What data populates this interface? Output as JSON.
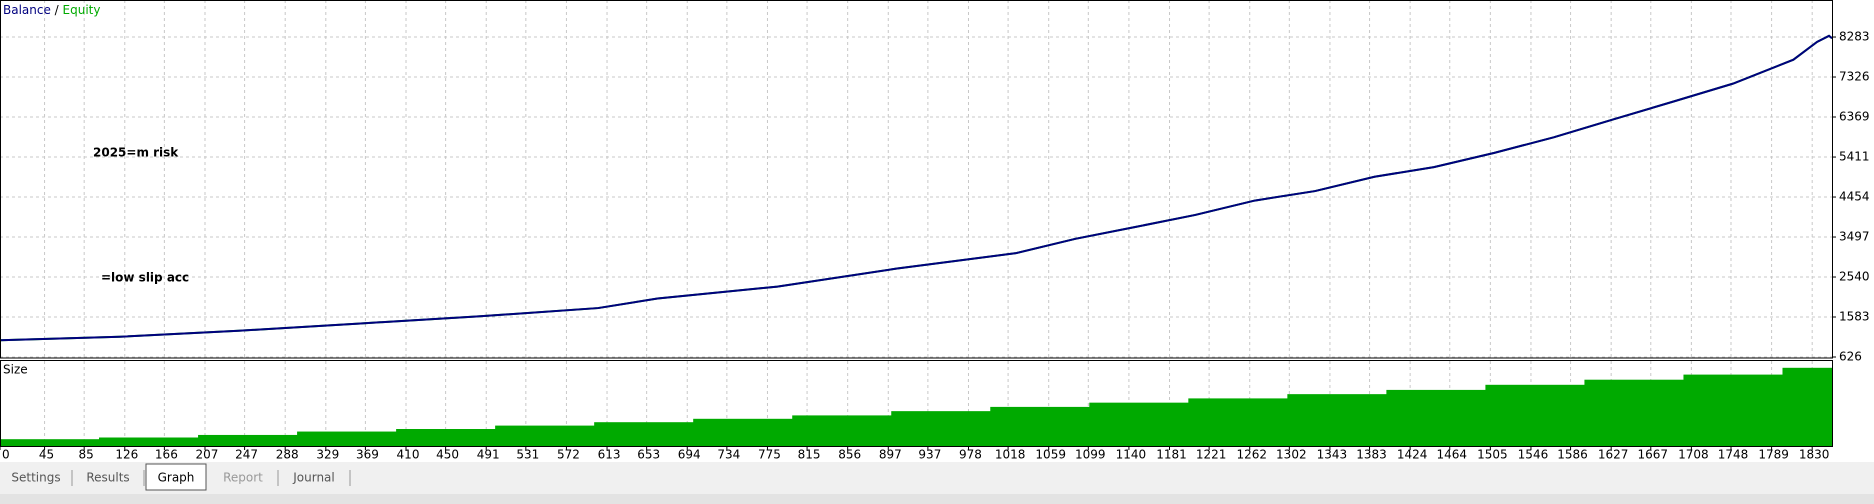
{
  "chart_data": [
    {
      "type": "line",
      "x": [
        0,
        121,
        241,
        362,
        483,
        604,
        664,
        785,
        905,
        1026,
        1086,
        1147,
        1207,
        1267,
        1328,
        1388,
        1448,
        1509,
        1569,
        1629,
        1690,
        1750,
        1811,
        1835,
        1847,
        1850
      ],
      "series": [
        {
          "name": "Balance",
          "color": "#00007f",
          "values": [
            1026,
            1111,
            1254,
            1426,
            1597,
            1797,
            2026,
            2311,
            2740,
            3111,
            3454,
            3740,
            4026,
            4369,
            4597,
            4940,
            5169,
            5511,
            5883,
            6311,
            6740,
            7168,
            7740,
            8168,
            8311,
            8254
          ]
        },
        {
          "name": "Equity",
          "color": "#00aa00",
          "values": [
            1026,
            1111,
            1254,
            1426,
            1597,
            1797,
            2026,
            2311,
            2740,
            3111,
            3454,
            3740,
            4026,
            4369,
            4597,
            4940,
            5169,
            5511,
            5883,
            6311,
            6740,
            7168,
            7740,
            8168,
            8311,
            8254
          ]
        }
      ],
      "ylim": [
        626,
        9169
      ],
      "yticks": [
        626,
        1583,
        2540,
        3497,
        4454,
        5411,
        6369,
        7326,
        8283
      ],
      "xlim": [
        0,
        1850
      ],
      "xticks": [
        0,
        45,
        85,
        126,
        166,
        207,
        247,
        288,
        329,
        369,
        410,
        450,
        491,
        531,
        572,
        613,
        653,
        694,
        734,
        775,
        815,
        856,
        897,
        937,
        978,
        1018,
        1059,
        1099,
        1140,
        1181,
        1221,
        1262,
        1302,
        1343,
        1383,
        1424,
        1464,
        1505,
        1546,
        1586,
        1627,
        1667,
        1708,
        1748,
        1789,
        1830
      ],
      "grid": true
    },
    {
      "type": "step",
      "title": "Size",
      "x": [
        0,
        100,
        200,
        300,
        400,
        500,
        600,
        700,
        800,
        900,
        1000,
        1100,
        1200,
        1300,
        1400,
        1500,
        1600,
        1700,
        1800
      ],
      "values": [
        8,
        10,
        13,
        17,
        20,
        24,
        28,
        32,
        36,
        41,
        46,
        51,
        56,
        61,
        66,
        72,
        78,
        84,
        92
      ],
      "color": "#00aa00",
      "ylim": [
        0,
        100
      ],
      "xlim": [
        0,
        1850
      ]
    }
  ],
  "overlay_text": [
    "2025=m risk",
    "=low slip acc"
  ],
  "tabs": [
    "Settings",
    "Results",
    "Graph",
    "Report",
    "Journal"
  ],
  "active_tab": 2
}
